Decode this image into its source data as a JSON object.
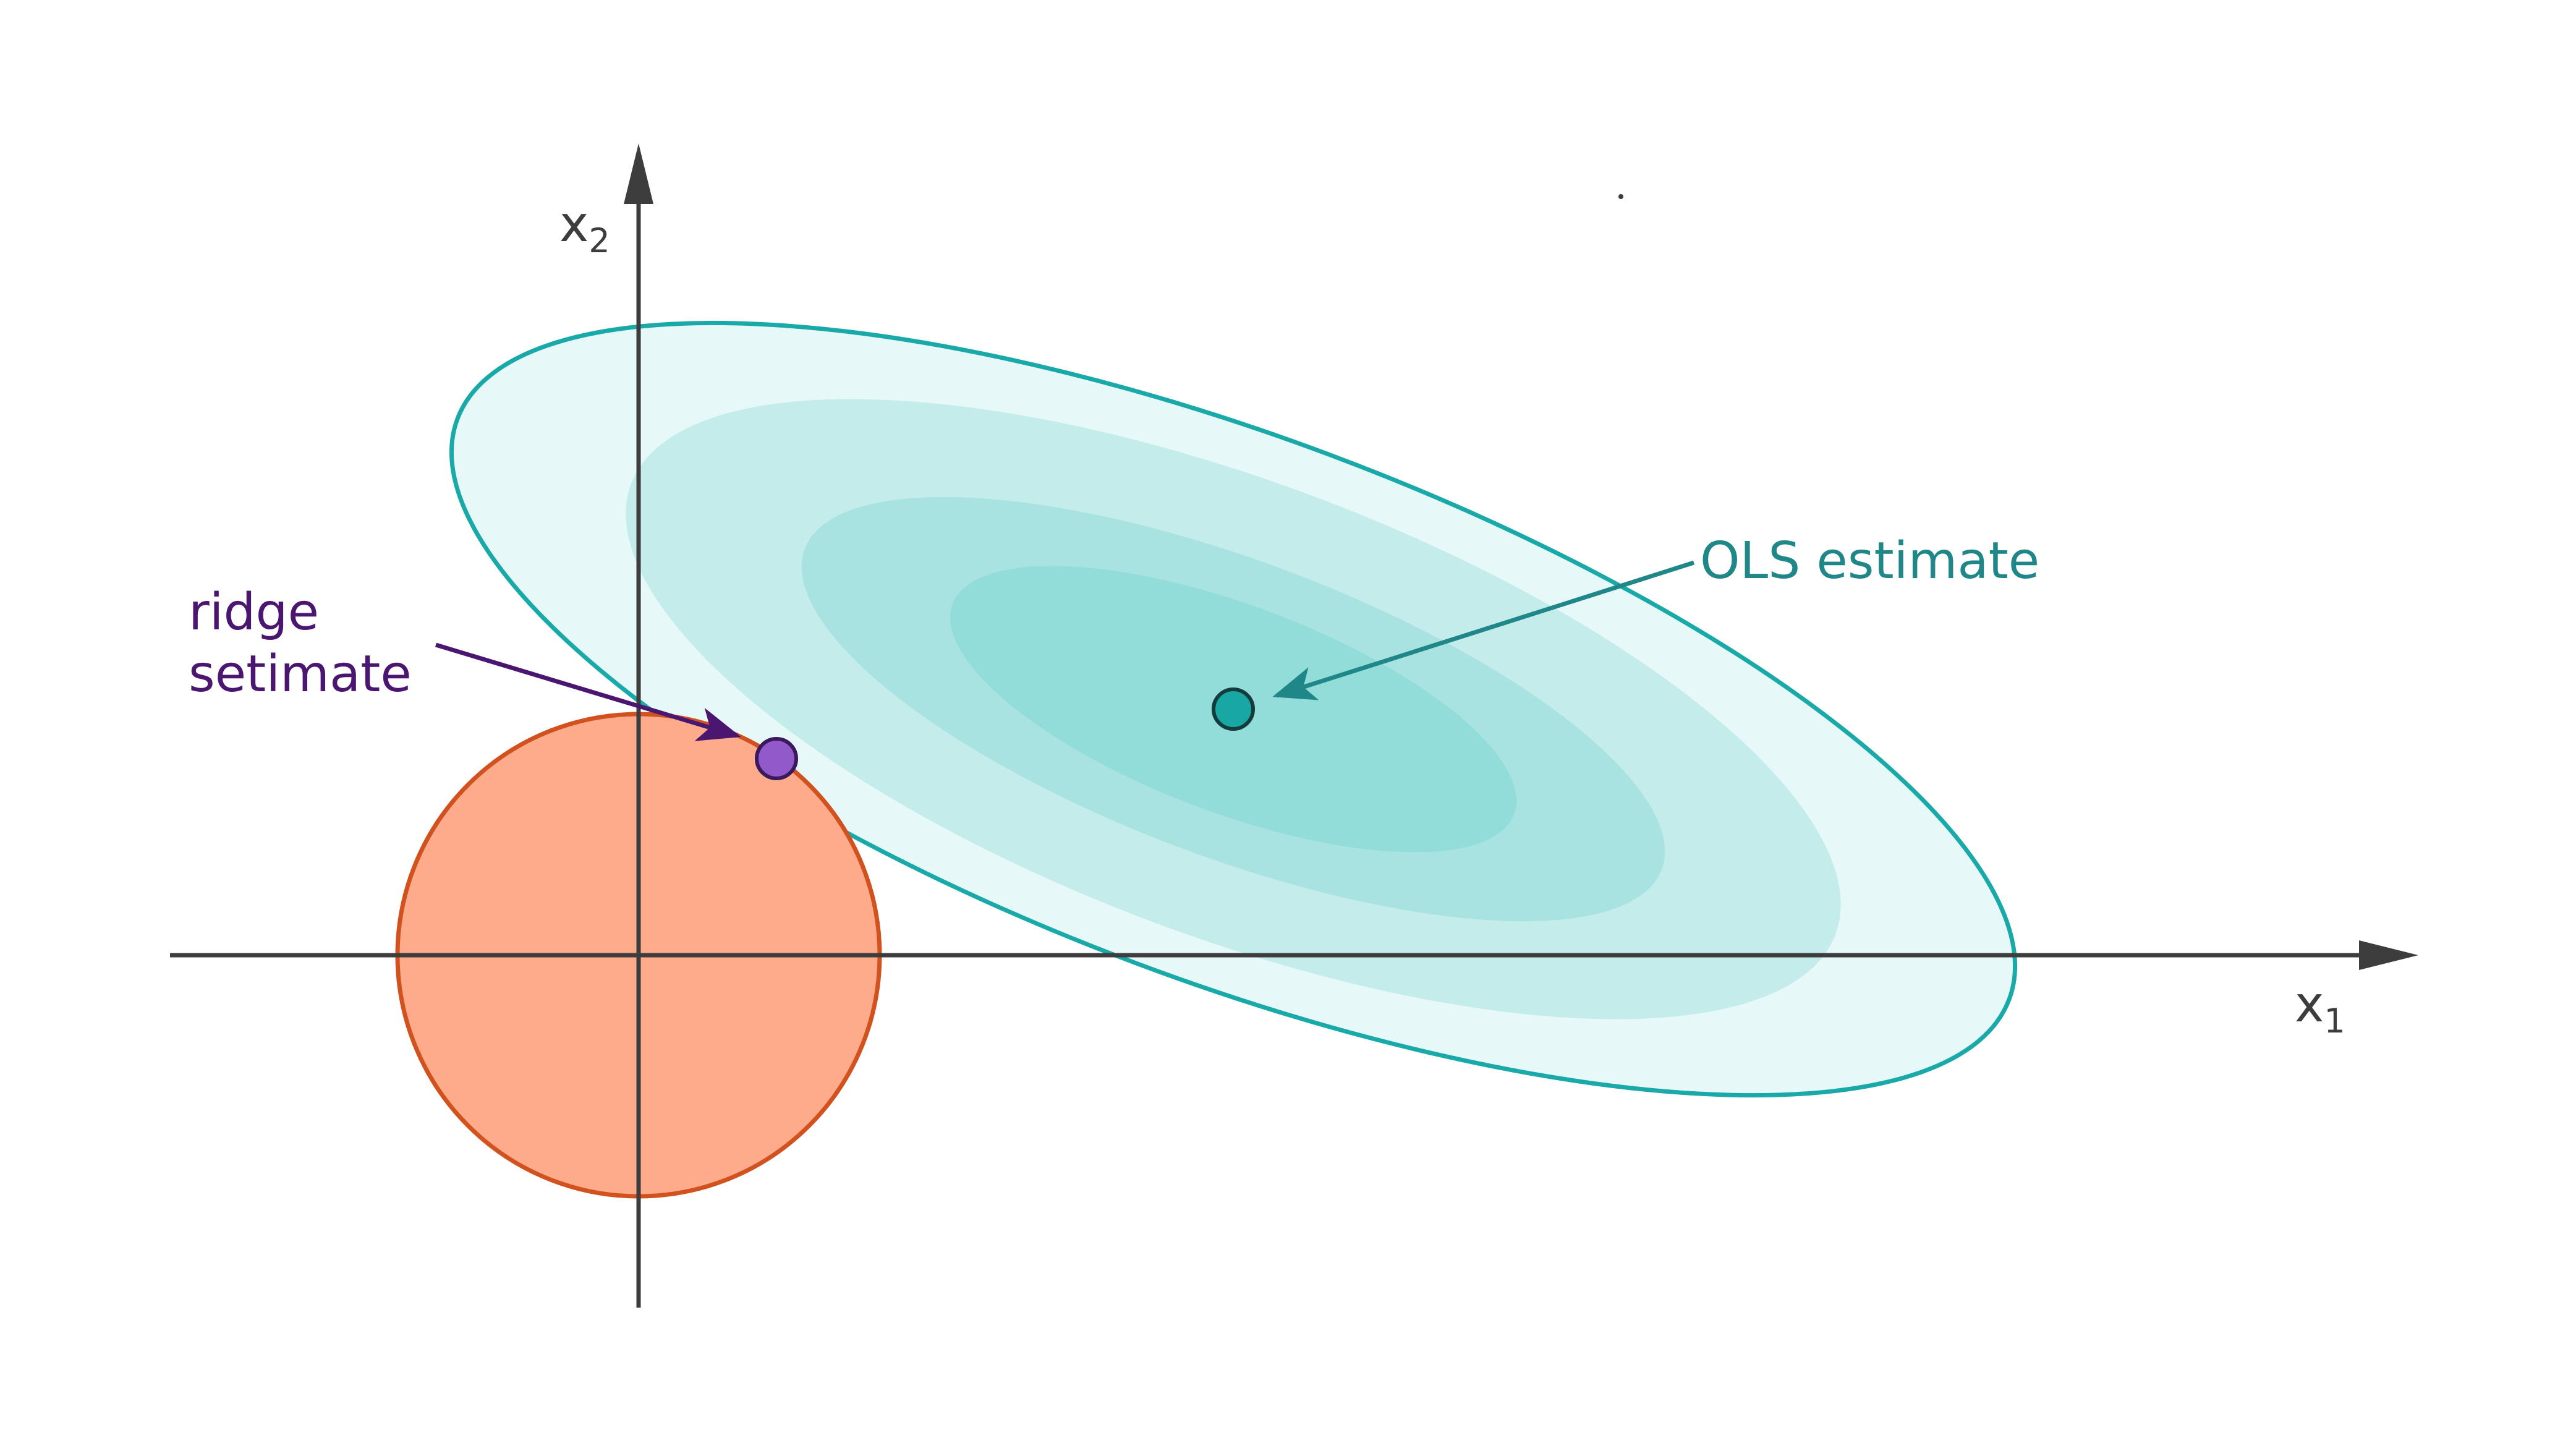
{
  "axes": {
    "x_label": "x",
    "x_subscript": "1",
    "y_label": "x",
    "y_subscript": "2"
  },
  "annotations": {
    "ridge_line1": "ridge",
    "ridge_line2": "setimate",
    "ols": "OLS estimate"
  },
  "colors": {
    "axis": "#3d3d3d",
    "ellipse_outline": "#1aa9a9",
    "ellipse_fill_1": "#e6f8f8",
    "ellipse_fill_2": "#c3eceb",
    "ellipse_fill_3": "#a8e3e2",
    "ellipse_fill_4": "#92dcda",
    "circle_fill": "#fdab8a",
    "circle_outline": "#d1511f",
    "ridge_point": "#9159c9",
    "ridge_text": "#4b1670",
    "ols_point": "#18a7a2",
    "ols_text": "#1f8788"
  }
}
